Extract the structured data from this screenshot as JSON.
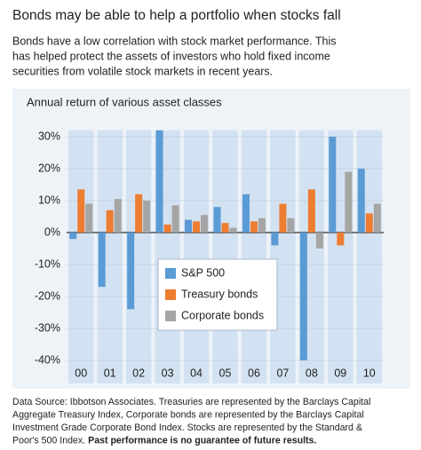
{
  "chart_data": {
    "type": "bar",
    "title": "Bonds may be able to help a portfolio when stocks fall",
    "subtitle_lines": [
      "Bonds have a low correlation with stock market performance. This",
      "has helped protect the assets of investors who hold fixed income",
      "securities from volatile stock markets in recent years."
    ],
    "chart_title": "Annual return of various asset classes",
    "categories": [
      "00",
      "01",
      "02",
      "03",
      "04",
      "05",
      "06",
      "07",
      "08",
      "09",
      "10"
    ],
    "series": [
      {
        "name": "S&P 500",
        "color": "#5b9bd5",
        "values": [
          -2,
          -17,
          -24,
          32,
          4,
          8,
          12,
          -4,
          -40,
          30,
          20
        ]
      },
      {
        "name": "Treasury bonds",
        "color": "#ed7d31",
        "values": [
          13.5,
          7,
          12,
          2.5,
          3.5,
          3,
          3.5,
          9,
          13.5,
          -4,
          6
        ]
      },
      {
        "name": "Corporate bonds",
        "color": "#a5a5a5",
        "values": [
          9,
          10.5,
          10,
          8.5,
          5.5,
          1.5,
          4.5,
          4.5,
          -5,
          19,
          9
        ]
      }
    ],
    "ylim": [
      -40,
      32
    ],
    "yticks": [
      {
        "value": 30,
        "label": "30%"
      },
      {
        "value": 20,
        "label": "20%"
      },
      {
        "value": 10,
        "label": "10%"
      },
      {
        "value": 0,
        "label": "0%"
      },
      {
        "value": -10,
        "label": "-10%"
      },
      {
        "value": -20,
        "label": "-20%"
      },
      {
        "value": -30,
        "label": "-30%"
      },
      {
        "value": -40,
        "label": "-40%"
      }
    ],
    "grid": true,
    "footnote_lines": [
      "Data Source: Ibbotson Associates. Treasuries are represented by the Barclays Capital",
      "Aggregate Treasury Index, Corporate bonds are represented by the Barclays Capital",
      "Investment Grade Corporate Bond Index. Stocks are represented by the Standard &",
      "Poor's 500 Index."
    ],
    "footnote_bold": "Past performance is no guarantee of future results."
  }
}
